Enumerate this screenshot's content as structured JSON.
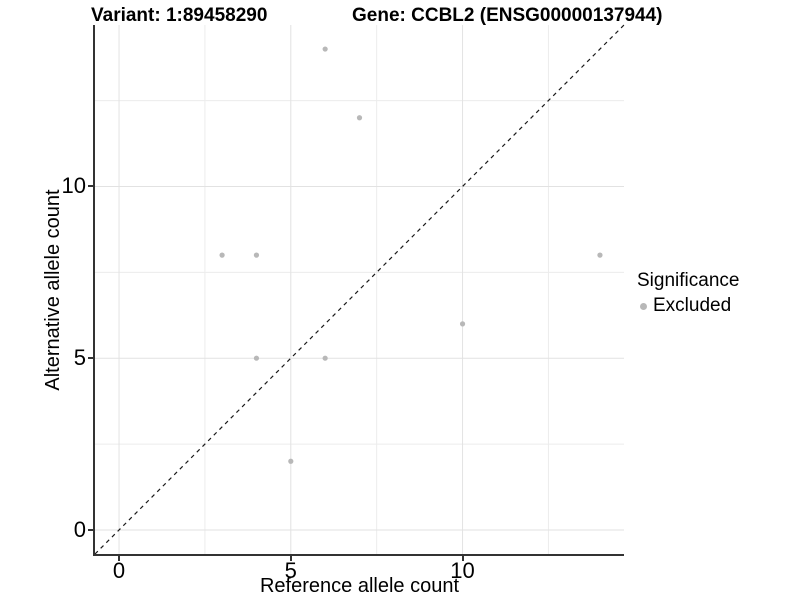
{
  "chart_data": {
    "type": "scatter",
    "title_left": "Variant: 1:89458290",
    "title_right": "Gene: CCBL2 (ENSG00000137944)",
    "xlabel": "Reference allele count",
    "ylabel": "Alternative allele count",
    "xlim": [
      -0.7,
      14.7
    ],
    "ylim": [
      -0.7,
      14.7
    ],
    "xticks": [
      0,
      5,
      10
    ],
    "yticks": [
      0,
      5,
      10
    ],
    "x_minor": [
      2.5,
      7.5,
      12.5
    ],
    "y_minor": [
      2.5,
      7.5,
      12.5
    ],
    "grid": "major+minor",
    "identity_line": {
      "slope": 1,
      "intercept": 0,
      "style": "dashed",
      "color": "#1a1a1a"
    },
    "series": [
      {
        "name": "Excluded",
        "color": "#b8b8b8",
        "points": [
          {
            "x": 3,
            "y": 8
          },
          {
            "x": 4,
            "y": 5
          },
          {
            "x": 4,
            "y": 8
          },
          {
            "x": 5,
            "y": 2
          },
          {
            "x": 6,
            "y": 5
          },
          {
            "x": 6,
            "y": 14
          },
          {
            "x": 7,
            "y": 12
          },
          {
            "x": 10,
            "y": 6
          },
          {
            "x": 14,
            "y": 8
          }
        ]
      }
    ],
    "legend": {
      "position": "right",
      "title": "Significance",
      "items": [
        {
          "label": "Excluded",
          "color": "#b8b8b8"
        }
      ]
    },
    "colors": {
      "grid_major": "#e2e2e2",
      "grid_minor": "#ececec",
      "axis_line": "#333333",
      "point": "#b8b8b8",
      "text": "#000000"
    }
  }
}
